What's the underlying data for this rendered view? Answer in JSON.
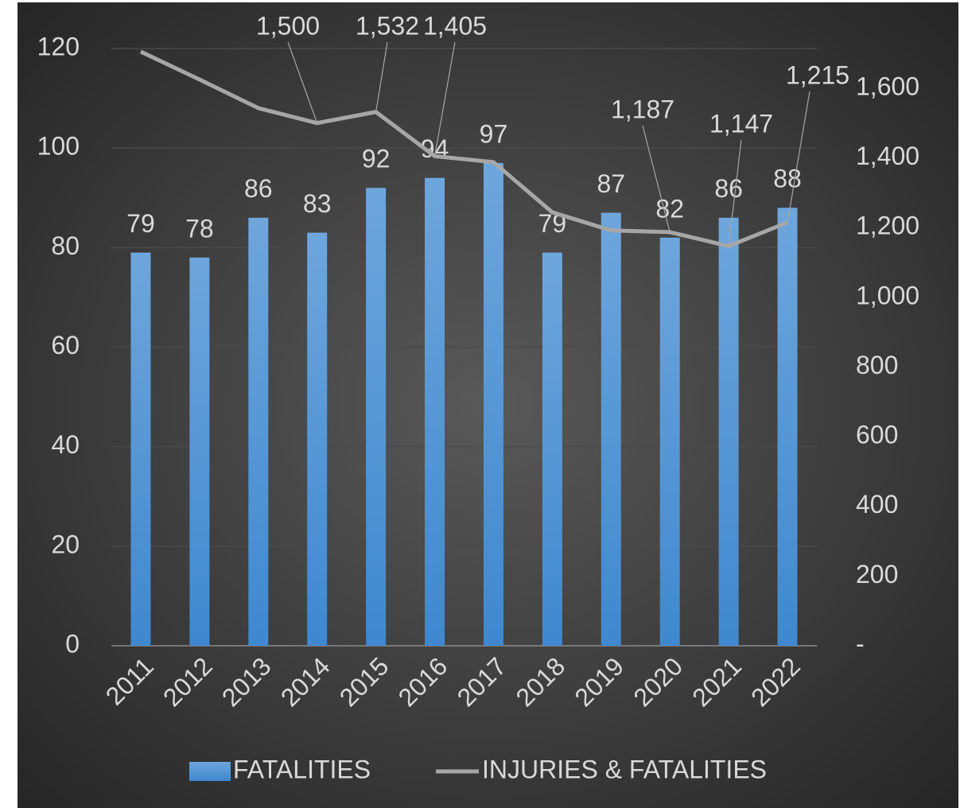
{
  "chart_data": {
    "type": "bar-line",
    "categories": [
      "2011",
      "2012",
      "2013",
      "2014",
      "2015",
      "2016",
      "2017",
      "2018",
      "2019",
      "2020",
      "2021",
      "2022"
    ],
    "series": [
      {
        "name": "FATALITIES",
        "color": "#5b9bd5",
        "type": "bar",
        "values": [
          79,
          78,
          86,
          83,
          92,
          94,
          97,
          79,
          87,
          82,
          86,
          88
        ]
      },
      {
        "name": "INJURIES & FATALITIES",
        "color": "#a6a6a6",
        "type": "line",
        "axis": "y2",
        "values": [
          1705,
          1625,
          1543,
          1500,
          1532,
          1405,
          1388,
          1244,
          1192,
          1187,
          1147,
          1215
        ],
        "value_labels": [
          null,
          null,
          null,
          "1,500",
          "1,532",
          "1,405",
          null,
          null,
          null,
          "1,187",
          "1,147",
          "1,215"
        ]
      }
    ],
    "ylim": [
      0,
      120
    ],
    "yticks": [
      0,
      20,
      40,
      60,
      80,
      100,
      120
    ],
    "y2lim": [
      0,
      1714
    ],
    "y2ticks": [
      {
        "value": 0,
        "label": "-"
      },
      200,
      400,
      600,
      800,
      {
        "value": 1000,
        "label": "1,000"
      },
      {
        "value": 1200,
        "label": "1,200"
      },
      {
        "value": 1400,
        "label": "1,400"
      },
      {
        "value": 1600,
        "label": "1,600"
      }
    ],
    "grid": true,
    "legend": "bottom"
  }
}
